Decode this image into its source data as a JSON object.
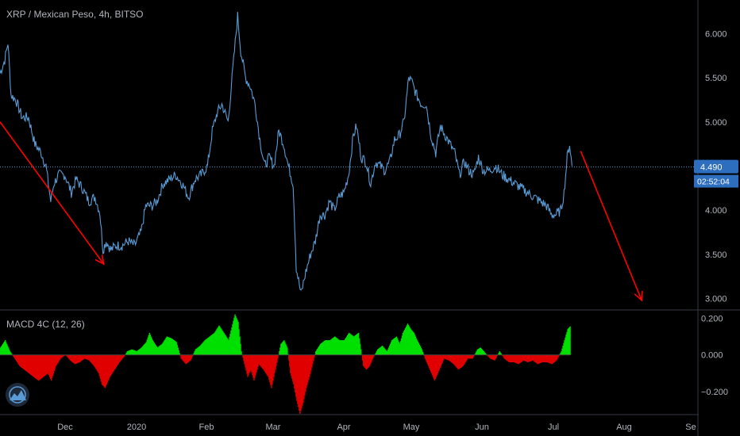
{
  "header": {
    "title": "XRP / Mexican Peso, 4h, BITSO"
  },
  "macd_panel": {
    "title": "MACD 4C (12, 26)"
  },
  "price_badge": {
    "value": "4.490",
    "countdown": "02:52:04"
  },
  "colors": {
    "background": "#000000",
    "price_line": "#5b9bd5",
    "macd_up": "#00e000",
    "macd_down": "#e00000",
    "arrow": "#ff0000",
    "badge": "#2e6ebe",
    "axis_text": "#b2b5be",
    "grid_line": "#363a45"
  },
  "logo": {
    "icon": "mountain-logo-icon"
  },
  "chart_data": [
    {
      "type": "line",
      "name": "price",
      "x_ticks": [
        "Dec",
        "2020",
        "Feb",
        "Mar",
        "Apr",
        "May",
        "Jun",
        "Jul",
        "Aug",
        "Se"
      ],
      "y_ticks": [
        "3.000",
        "3.500",
        "4.000",
        "4.500",
        "5.000",
        "5.500",
        "6.000"
      ],
      "ylim": [
        2.88,
        6.38
      ],
      "xlim": [
        0,
        880
      ],
      "current_price": 4.49,
      "points": [
        [
          0,
          5.55
        ],
        [
          6,
          5.7
        ],
        [
          10,
          5.9
        ],
        [
          14,
          5.3
        ],
        [
          20,
          5.25
        ],
        [
          28,
          5.05
        ],
        [
          36,
          5.05
        ],
        [
          44,
          4.75
        ],
        [
          52,
          4.65
        ],
        [
          58,
          4.5
        ],
        [
          64,
          4.1
        ],
        [
          68,
          4.3
        ],
        [
          74,
          4.4
        ],
        [
          82,
          4.4
        ],
        [
          90,
          4.2
        ],
        [
          96,
          4.35
        ],
        [
          104,
          4.25
        ],
        [
          112,
          4.1
        ],
        [
          120,
          4.15
        ],
        [
          126,
          3.98
        ],
        [
          130,
          3.55
        ],
        [
          134,
          3.65
        ],
        [
          140,
          3.55
        ],
        [
          146,
          3.6
        ],
        [
          154,
          3.6
        ],
        [
          162,
          3.65
        ],
        [
          170,
          3.6
        ],
        [
          178,
          3.75
        ],
        [
          184,
          4.05
        ],
        [
          192,
          4.05
        ],
        [
          198,
          4.1
        ],
        [
          206,
          4.3
        ],
        [
          214,
          4.35
        ],
        [
          222,
          4.4
        ],
        [
          230,
          4.3
        ],
        [
          238,
          4.15
        ],
        [
          246,
          4.35
        ],
        [
          254,
          4.4
        ],
        [
          262,
          4.5
        ],
        [
          268,
          4.9
        ],
        [
          274,
          5.1
        ],
        [
          280,
          5.2
        ],
        [
          288,
          5.0
        ],
        [
          294,
          5.6
        ],
        [
          300,
          6.2
        ],
        [
          304,
          5.8
        ],
        [
          310,
          5.5
        ],
        [
          316,
          5.4
        ],
        [
          322,
          5.2
        ],
        [
          328,
          4.8
        ],
        [
          334,
          4.5
        ],
        [
          340,
          4.6
        ],
        [
          346,
          4.5
        ],
        [
          352,
          4.9
        ],
        [
          358,
          4.75
        ],
        [
          364,
          4.5
        ],
        [
          370,
          4.3
        ],
        [
          374,
          3.35
        ],
        [
          380,
          3.05
        ],
        [
          386,
          3.3
        ],
        [
          392,
          3.5
        ],
        [
          398,
          3.65
        ],
        [
          404,
          3.95
        ],
        [
          410,
          3.95
        ],
        [
          416,
          4.1
        ],
        [
          422,
          4.0
        ],
        [
          428,
          4.15
        ],
        [
          434,
          4.2
        ],
        [
          440,
          4.4
        ],
        [
          446,
          4.85
        ],
        [
          450,
          4.95
        ],
        [
          456,
          4.6
        ],
        [
          462,
          4.55
        ],
        [
          468,
          4.3
        ],
        [
          474,
          4.55
        ],
        [
          480,
          4.5
        ],
        [
          486,
          4.45
        ],
        [
          492,
          4.55
        ],
        [
          498,
          4.8
        ],
        [
          504,
          4.85
        ],
        [
          510,
          5.0
        ],
        [
          516,
          5.5
        ],
        [
          520,
          5.45
        ],
        [
          526,
          5.3
        ],
        [
          532,
          5.2
        ],
        [
          538,
          5.2
        ],
        [
          544,
          4.85
        ],
        [
          550,
          4.65
        ],
        [
          556,
          4.95
        ],
        [
          562,
          4.85
        ],
        [
          568,
          4.75
        ],
        [
          574,
          4.65
        ],
        [
          580,
          4.4
        ],
        [
          586,
          4.55
        ],
        [
          592,
          4.45
        ],
        [
          598,
          4.4
        ],
        [
          604,
          4.6
        ],
        [
          610,
          4.45
        ],
        [
          618,
          4.45
        ],
        [
          626,
          4.5
        ],
        [
          634,
          4.4
        ],
        [
          642,
          4.35
        ],
        [
          650,
          4.3
        ],
        [
          658,
          4.25
        ],
        [
          666,
          4.2
        ],
        [
          674,
          4.15
        ],
        [
          682,
          4.1
        ],
        [
          690,
          4.05
        ],
        [
          696,
          3.95
        ],
        [
          702,
          3.95
        ],
        [
          708,
          4.0
        ],
        [
          712,
          4.2
        ],
        [
          716,
          4.6
        ],
        [
          719,
          4.75
        ],
        [
          722,
          4.5
        ]
      ]
    },
    {
      "type": "bar",
      "name": "MACD 4C (12, 26)",
      "y_ticks": [
        "0.200",
        "0.000",
        "−0.200"
      ],
      "ylim": [
        -0.32,
        0.24
      ],
      "xlim": [
        0,
        880
      ],
      "points": [
        [
          0,
          0.04
        ],
        [
          6,
          0.08
        ],
        [
          12,
          0.02
        ],
        [
          18,
          -0.02
        ],
        [
          24,
          -0.06
        ],
        [
          30,
          -0.08
        ],
        [
          36,
          -0.1
        ],
        [
          42,
          -0.12
        ],
        [
          48,
          -0.14
        ],
        [
          54,
          -0.12
        ],
        [
          60,
          -0.1
        ],
        [
          64,
          -0.14
        ],
        [
          70,
          -0.06
        ],
        [
          76,
          -0.02
        ],
        [
          82,
          0.0
        ],
        [
          88,
          -0.03
        ],
        [
          94,
          -0.05
        ],
        [
          100,
          -0.04
        ],
        [
          106,
          -0.02
        ],
        [
          112,
          -0.03
        ],
        [
          118,
          -0.06
        ],
        [
          124,
          -0.1
        ],
        [
          128,
          -0.16
        ],
        [
          132,
          -0.18
        ],
        [
          138,
          -0.12
        ],
        [
          144,
          -0.08
        ],
        [
          150,
          -0.04
        ],
        [
          156,
          -0.01
        ],
        [
          160,
          0.02
        ],
        [
          166,
          0.03
        ],
        [
          172,
          0.02
        ],
        [
          178,
          0.04
        ],
        [
          184,
          0.07
        ],
        [
          188,
          0.12
        ],
        [
          192,
          0.08
        ],
        [
          198,
          0.04
        ],
        [
          204,
          0.06
        ],
        [
          210,
          0.1
        ],
        [
          216,
          0.09
        ],
        [
          222,
          0.07
        ],
        [
          228,
          -0.02
        ],
        [
          234,
          -0.05
        ],
        [
          240,
          -0.03
        ],
        [
          246,
          0.03
        ],
        [
          252,
          0.05
        ],
        [
          258,
          0.08
        ],
        [
          264,
          0.1
        ],
        [
          270,
          0.12
        ],
        [
          276,
          0.16
        ],
        [
          282,
          0.12
        ],
        [
          288,
          0.08
        ],
        [
          292,
          0.15
        ],
        [
          296,
          0.22
        ],
        [
          300,
          0.18
        ],
        [
          304,
          0.02
        ],
        [
          308,
          -0.05
        ],
        [
          312,
          -0.12
        ],
        [
          316,
          -0.08
        ],
        [
          320,
          -0.14
        ],
        [
          326,
          -0.05
        ],
        [
          332,
          -0.08
        ],
        [
          338,
          -0.12
        ],
        [
          342,
          -0.18
        ],
        [
          346,
          -0.1
        ],
        [
          350,
          -0.02
        ],
        [
          354,
          0.06
        ],
        [
          358,
          0.08
        ],
        [
          362,
          0.04
        ],
        [
          366,
          -0.1
        ],
        [
          370,
          -0.16
        ],
        [
          374,
          -0.25
        ],
        [
          378,
          -0.32
        ],
        [
          382,
          -0.26
        ],
        [
          386,
          -0.18
        ],
        [
          390,
          -0.12
        ],
        [
          394,
          -0.05
        ],
        [
          398,
          0.02
        ],
        [
          404,
          0.06
        ],
        [
          410,
          0.08
        ],
        [
          416,
          0.08
        ],
        [
          422,
          0.1
        ],
        [
          428,
          0.08
        ],
        [
          434,
          0.08
        ],
        [
          440,
          0.12
        ],
        [
          446,
          0.1
        ],
        [
          452,
          0.12
        ],
        [
          458,
          -0.06
        ],
        [
          462,
          -0.08
        ],
        [
          466,
          -0.06
        ],
        [
          470,
          -0.02
        ],
        [
          476,
          0.03
        ],
        [
          482,
          0.05
        ],
        [
          488,
          0.02
        ],
        [
          494,
          0.08
        ],
        [
          500,
          0.1
        ],
        [
          504,
          0.06
        ],
        [
          508,
          0.12
        ],
        [
          514,
          0.17
        ],
        [
          518,
          0.14
        ],
        [
          522,
          0.12
        ],
        [
          526,
          0.08
        ],
        [
          532,
          0.03
        ],
        [
          536,
          -0.02
        ],
        [
          540,
          -0.06
        ],
        [
          544,
          -0.1
        ],
        [
          548,
          -0.14
        ],
        [
          554,
          -0.08
        ],
        [
          560,
          -0.02
        ],
        [
          566,
          -0.03
        ],
        [
          572,
          -0.05
        ],
        [
          578,
          -0.08
        ],
        [
          584,
          -0.06
        ],
        [
          590,
          -0.02
        ],
        [
          596,
          -0.02
        ],
        [
          602,
          0.03
        ],
        [
          606,
          0.04
        ],
        [
          612,
          0.01
        ],
        [
          618,
          -0.02
        ],
        [
          624,
          -0.03
        ],
        [
          630,
          0.02
        ],
        [
          636,
          -0.02
        ],
        [
          642,
          -0.04
        ],
        [
          648,
          -0.04
        ],
        [
          654,
          -0.05
        ],
        [
          660,
          -0.03
        ],
        [
          666,
          -0.04
        ],
        [
          672,
          -0.03
        ],
        [
          678,
          -0.05
        ],
        [
          684,
          -0.04
        ],
        [
          690,
          -0.04
        ],
        [
          696,
          -0.05
        ],
        [
          702,
          -0.03
        ],
        [
          708,
          0.02
        ],
        [
          712,
          0.08
        ],
        [
          716,
          0.14
        ],
        [
          720,
          0.16
        ]
      ]
    }
  ],
  "annotations": [
    {
      "type": "arrow",
      "from": [
        0,
        5.0
      ],
      "to": [
        131,
        3.39
      ]
    },
    {
      "type": "arrow",
      "from": [
        733,
        4.67
      ],
      "to": [
        810,
        2.98
      ]
    }
  ]
}
